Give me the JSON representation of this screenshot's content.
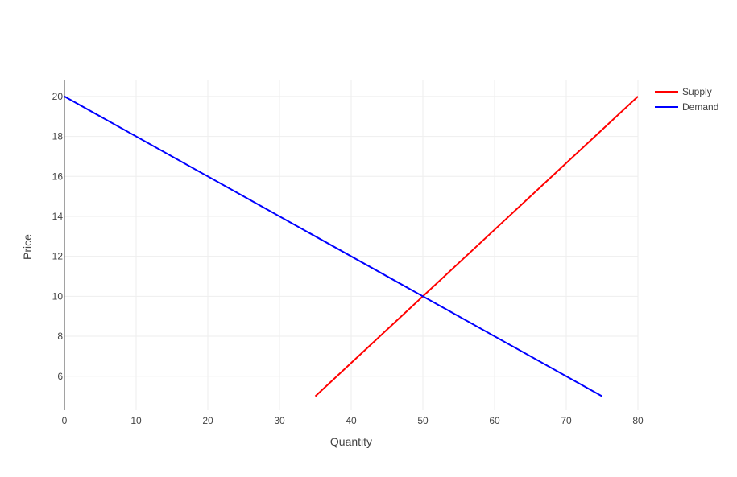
{
  "chart_data": {
    "type": "line",
    "xlabel": "Quantity",
    "ylabel": "Price",
    "xlim": [
      0,
      80
    ],
    "ylim": [
      4.3,
      20.8
    ],
    "x_ticks": [
      0,
      10,
      20,
      30,
      40,
      50,
      60,
      70,
      80
    ],
    "y_ticks": [
      6,
      8,
      10,
      12,
      14,
      16,
      18,
      20
    ],
    "grid": true,
    "legend_position": "top-right",
    "series": [
      {
        "name": "Supply",
        "color": "#ff0000",
        "x": [
          35,
          80
        ],
        "y": [
          5,
          20
        ]
      },
      {
        "name": "Demand",
        "color": "#0000ff",
        "x": [
          0,
          75
        ],
        "y": [
          20,
          5
        ]
      }
    ]
  }
}
